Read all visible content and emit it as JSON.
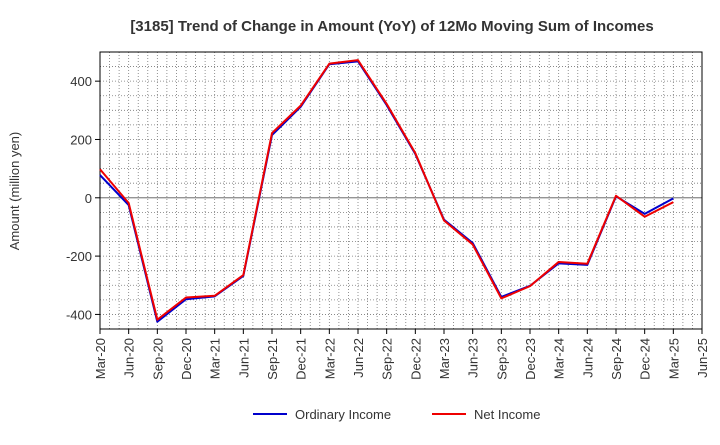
{
  "chart_data": {
    "type": "line",
    "title": "[3185]  Trend of Change in Amount (YoY) of 12Mo Moving Sum of Incomes",
    "xlabel": "",
    "ylabel": "Amount (million yen)",
    "ylim": [
      -450,
      500
    ],
    "yticks": [
      -400,
      -200,
      0,
      200,
      400
    ],
    "x": [
      "Mar-20",
      "Jun-20",
      "Sep-20",
      "Dec-20",
      "Mar-21",
      "Jun-21",
      "Sep-21",
      "Dec-21",
      "Mar-22",
      "Jun-22",
      "Sep-22",
      "Dec-22",
      "Mar-23",
      "Jun-23",
      "Sep-23",
      "Dec-23",
      "Mar-24",
      "Jun-24",
      "Sep-24",
      "Dec-24",
      "Mar-25",
      "Jun-25"
    ],
    "grid": true,
    "legend_position": "bottom",
    "series": [
      {
        "name": "Ordinary Income",
        "color": "#0000cc",
        "values": [
          78,
          -25,
          -425,
          -348,
          -338,
          -268,
          215,
          312,
          458,
          468,
          318,
          150,
          -75,
          -155,
          -340,
          -302,
          -225,
          -230,
          5,
          -55,
          -2,
          null
        ]
      },
      {
        "name": "Net Income",
        "color": "#ee0000",
        "values": [
          98,
          -18,
          -418,
          -342,
          -336,
          -265,
          222,
          316,
          460,
          472,
          322,
          153,
          -78,
          -160,
          -345,
          -303,
          -220,
          -226,
          7,
          -65,
          -15,
          null
        ]
      }
    ]
  }
}
